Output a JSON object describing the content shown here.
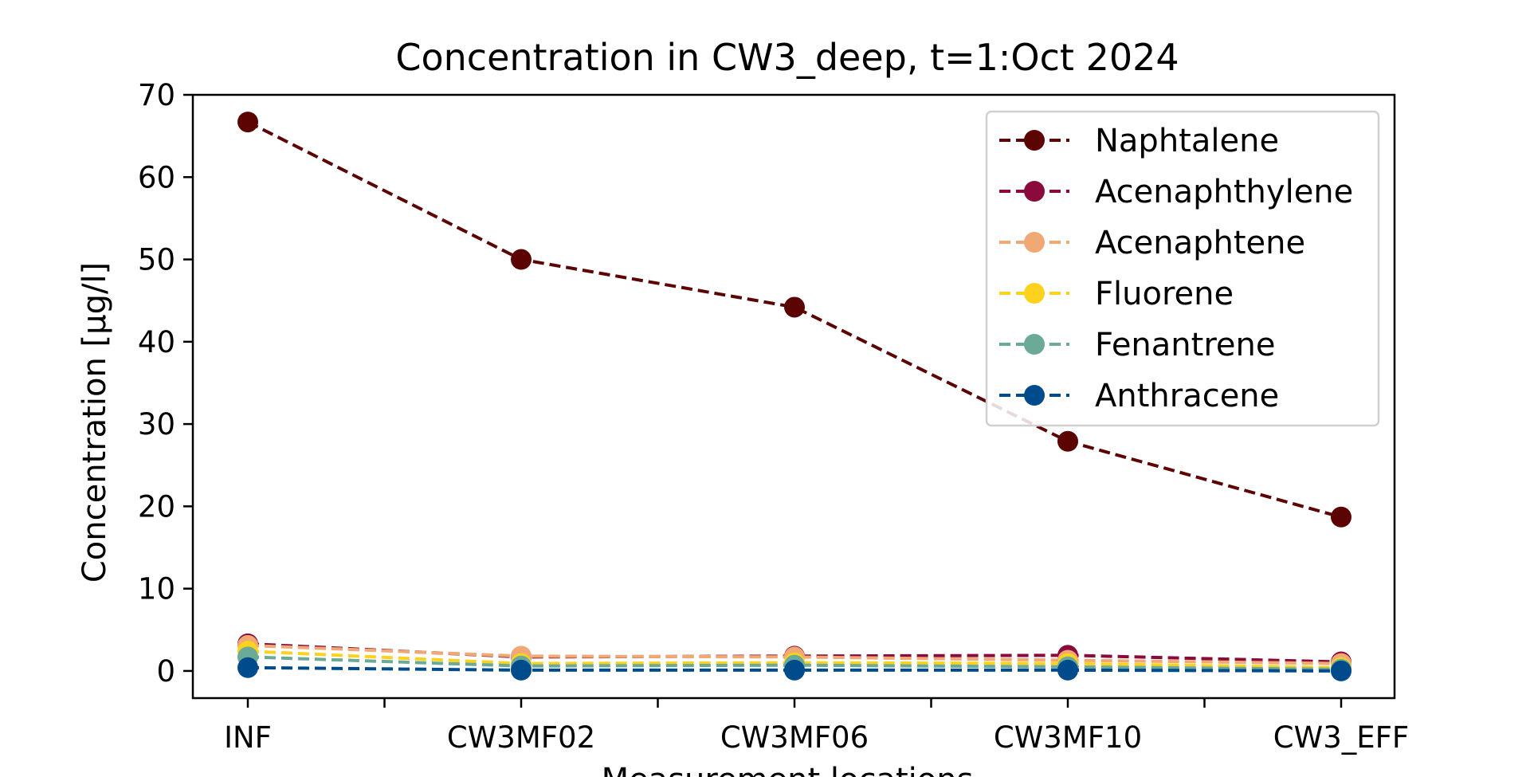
{
  "chart_data": {
    "type": "line",
    "title": "Concentration in CW3_deep, t=1:Oct 2024",
    "xlabel": "Measurement locations",
    "ylabel": "Concentration [µg/l]",
    "categories": [
      "INF",
      "CW3MF02",
      "CW3MF06",
      "CW3MF10",
      "CW3_EFF"
    ],
    "ylim": [
      -3.3,
      70
    ],
    "yticks": [
      0,
      10,
      20,
      30,
      40,
      50,
      60,
      70
    ],
    "grid": false,
    "legend_position": "top-right",
    "line_style": "dashed",
    "marker": "circle",
    "series": [
      {
        "name": "Naphtalene",
        "color": "#5c0404",
        "values": [
          66.7,
          50.0,
          44.2,
          27.9,
          18.7
        ]
      },
      {
        "name": "Acenaphthylene",
        "color": "#8b0a3c",
        "values": [
          3.3,
          1.7,
          1.8,
          1.9,
          1.1
        ]
      },
      {
        "name": "Acenaphtene",
        "color": "#f0a875",
        "values": [
          3.1,
          1.8,
          1.7,
          1.3,
          0.9
        ]
      },
      {
        "name": "Fluorene",
        "color": "#fdd21f",
        "values": [
          2.4,
          0.9,
          1.0,
          0.9,
          0.4
        ]
      },
      {
        "name": "Fenantrene",
        "color": "#6aaa96",
        "values": [
          1.7,
          0.6,
          0.7,
          0.5,
          0.2
        ]
      },
      {
        "name": "Anthracene",
        "color": "#004b8c",
        "values": [
          0.4,
          0.1,
          0.1,
          0.1,
          0.0
        ]
      }
    ]
  }
}
